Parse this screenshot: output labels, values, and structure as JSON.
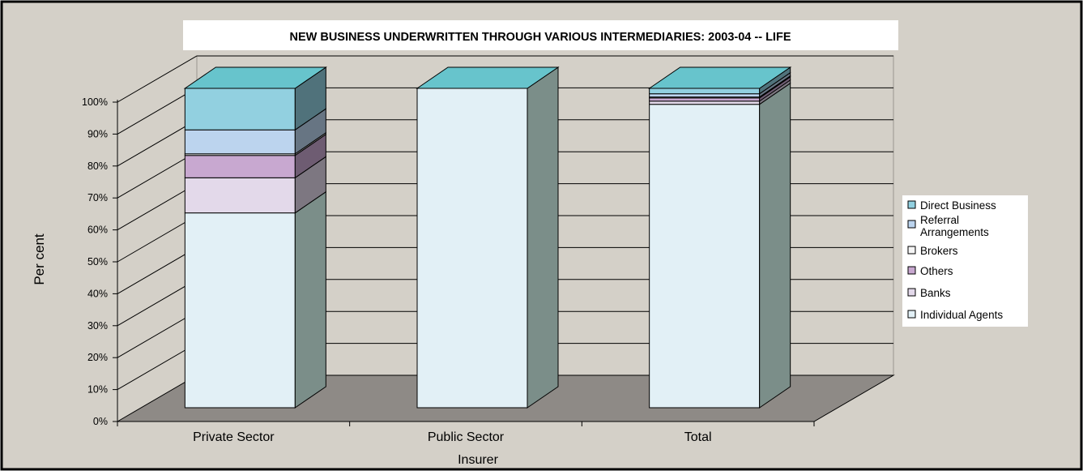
{
  "chart_data": {
    "type": "bar",
    "stacked": true,
    "percent_stacked": true,
    "three_d": true,
    "title": "NEW BUSINESS UNDERWRITTEN THROUGH VARIOUS INTERMEDIARIES: 2003-04 -- LIFE",
    "xlabel": "Insurer",
    "ylabel": "Per cent",
    "ylim": [
      0,
      100
    ],
    "yticks": [
      "0%",
      "10%",
      "20%",
      "30%",
      "40%",
      "50%",
      "60%",
      "70%",
      "80%",
      "90%",
      "100%"
    ],
    "categories": [
      "Private Sector",
      "Public Sector",
      "Total"
    ],
    "series": [
      {
        "name": "Individual Agents",
        "values": [
          61,
          100,
          95
        ],
        "color": "#e2f0f6"
      },
      {
        "name": "Banks",
        "values": [
          11,
          0,
          1
        ],
        "color": "#e3d9ea"
      },
      {
        "name": "Others",
        "values": [
          7,
          0,
          1
        ],
        "color": "#c8a8d0"
      },
      {
        "name": "Brokers",
        "values": [
          0.5,
          0,
          0.3
        ],
        "color": "#f5f5f5"
      },
      {
        "name": "Referral Arrangements",
        "values": [
          7.5,
          0,
          1
        ],
        "color": "#bcd4ee"
      },
      {
        "name": "Direct Business",
        "values": [
          13,
          0,
          1.7
        ],
        "color": "#92d0e0"
      }
    ],
    "legend_order": [
      "Direct Business",
      "Referral Arrangements",
      "Brokers",
      "Others",
      "Banks",
      "Individual Agents"
    ],
    "legend_position": "right",
    "grid": true,
    "background_color": "#d4d0c8",
    "floor_color": "#8e8a86",
    "side_color": "#7b8e89",
    "top_color": "#67c4cc"
  }
}
